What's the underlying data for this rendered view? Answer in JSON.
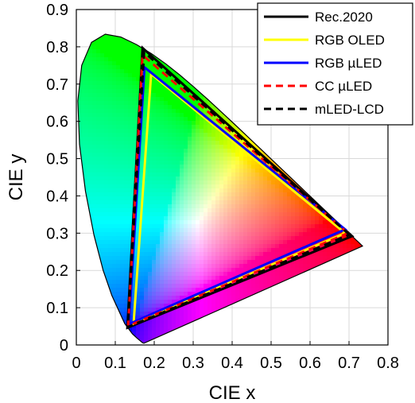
{
  "chart_data": {
    "type": "line",
    "title": "",
    "xlabel": "CIE x",
    "ylabel": "CIE y",
    "xlim": [
      0,
      0.8
    ],
    "ylim": [
      0,
      0.9
    ],
    "grid": true,
    "x_ticks": [
      "0",
      "0.1",
      "0.2",
      "0.3",
      "0.4",
      "0.5",
      "0.6",
      "0.7",
      "0.8"
    ],
    "y_ticks": [
      "0",
      "0.1",
      "0.2",
      "0.3",
      "0.4",
      "0.5",
      "0.6",
      "0.7",
      "0.8",
      "0.9"
    ],
    "legend_position": "top-right",
    "spectral_locus": [
      [
        0.1741,
        0.005
      ],
      [
        0.1738,
        0.0049
      ],
      [
        0.1733,
        0.0048
      ],
      [
        0.1726,
        0.0048
      ],
      [
        0.1714,
        0.0051
      ],
      [
        0.1689,
        0.0069
      ],
      [
        0.1644,
        0.0109
      ],
      [
        0.1566,
        0.0177
      ],
      [
        0.144,
        0.0297
      ],
      [
        0.1241,
        0.0578
      ],
      [
        0.0913,
        0.1327
      ],
      [
        0.0687,
        0.2007
      ],
      [
        0.0454,
        0.295
      ],
      [
        0.0235,
        0.4127
      ],
      [
        0.0082,
        0.5384
      ],
      [
        0.0039,
        0.6548
      ],
      [
        0.0139,
        0.7502
      ],
      [
        0.0389,
        0.812
      ],
      [
        0.0743,
        0.8338
      ],
      [
        0.1142,
        0.8262
      ],
      [
        0.1547,
        0.8059
      ],
      [
        0.1929,
        0.7816
      ],
      [
        0.2296,
        0.7543
      ],
      [
        0.2658,
        0.7243
      ],
      [
        0.3016,
        0.6923
      ],
      [
        0.3373,
        0.6589
      ],
      [
        0.3731,
        0.6245
      ],
      [
        0.4087,
        0.5896
      ],
      [
        0.4441,
        0.5547
      ],
      [
        0.4788,
        0.5202
      ],
      [
        0.5125,
        0.4866
      ],
      [
        0.5448,
        0.4544
      ],
      [
        0.5752,
        0.4242
      ],
      [
        0.6029,
        0.3965
      ],
      [
        0.627,
        0.3725
      ],
      [
        0.6482,
        0.3514
      ],
      [
        0.6658,
        0.334
      ],
      [
        0.6801,
        0.3197
      ],
      [
        0.6915,
        0.3083
      ],
      [
        0.7006,
        0.2993
      ],
      [
        0.7079,
        0.292
      ],
      [
        0.714,
        0.2859
      ],
      [
        0.719,
        0.2809
      ],
      [
        0.723,
        0.277
      ],
      [
        0.726,
        0.274
      ],
      [
        0.7283,
        0.2717
      ],
      [
        0.73,
        0.27
      ],
      [
        0.7311,
        0.2689
      ],
      [
        0.732,
        0.268
      ],
      [
        0.7327,
        0.2673
      ],
      [
        0.7334,
        0.2666
      ],
      [
        0.734,
        0.266
      ],
      [
        0.7344,
        0.2656
      ],
      [
        0.7346,
        0.2654
      ],
      [
        0.7347,
        0.2653
      ]
    ],
    "series": [
      {
        "name": "Rec.2020",
        "color": "#000000",
        "dash": "solid",
        "points": [
          [
            0.708,
            0.292
          ],
          [
            0.17,
            0.797
          ],
          [
            0.131,
            0.046
          ]
        ]
      },
      {
        "name": "RGB OLED",
        "color": "#ffff00",
        "dash": "solid",
        "points": [
          [
            0.69,
            0.3
          ],
          [
            0.192,
            0.727
          ],
          [
            0.147,
            0.057
          ]
        ]
      },
      {
        "name": "RGB µLED",
        "color": "#0000ff",
        "dash": "solid",
        "points": [
          [
            0.69,
            0.31
          ],
          [
            0.175,
            0.745
          ],
          [
            0.135,
            0.056
          ]
        ]
      },
      {
        "name": "CC µLED",
        "color": "#ff0000",
        "dash": "dashed",
        "points": [
          [
            0.697,
            0.3
          ],
          [
            0.17,
            0.778
          ],
          [
            0.133,
            0.051
          ]
        ]
      },
      {
        "name": "mLED-LCD",
        "color": "#000000",
        "dash": "dashed",
        "points": [
          [
            0.701,
            0.296
          ],
          [
            0.174,
            0.786
          ],
          [
            0.132,
            0.048
          ]
        ]
      }
    ]
  }
}
